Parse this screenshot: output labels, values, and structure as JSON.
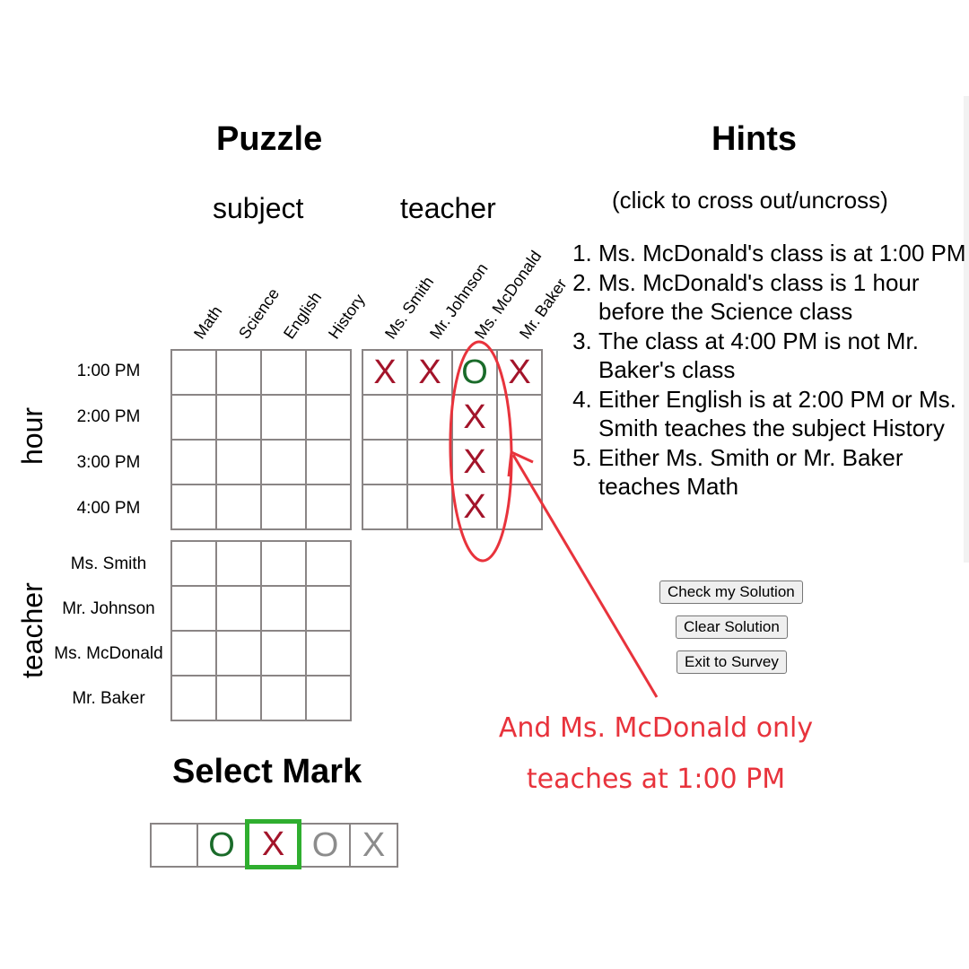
{
  "puzzle": {
    "title": "Puzzle",
    "groups": {
      "subject": "subject",
      "teacher": "teacher"
    },
    "subject_columns": [
      "Math",
      "Science",
      "English",
      "History"
    ],
    "teacher_columns": [
      "Ms. Smith",
      "Mr. Johnson",
      "Ms. McDonald",
      "Mr. Baker"
    ],
    "row_axis_hour": "hour",
    "row_axis_teacher": "teacher",
    "hour_rows": [
      "1:00 PM",
      "2:00 PM",
      "3:00 PM",
      "4:00 PM"
    ],
    "teacher_rows": [
      "Ms. Smith",
      "Mr. Johnson",
      "Ms. McDonald",
      "Mr. Baker"
    ],
    "hour_teacher_grid": [
      [
        "X",
        "X",
        "O",
        "X"
      ],
      [
        "",
        "",
        "X",
        ""
      ],
      [
        "",
        "",
        "X",
        ""
      ],
      [
        "",
        "",
        "X",
        ""
      ]
    ],
    "hour_subject_grid": [
      [
        "",
        "",
        "",
        ""
      ],
      [
        "",
        "",
        "",
        ""
      ],
      [
        "",
        "",
        "",
        ""
      ],
      [
        "",
        "",
        "",
        ""
      ]
    ],
    "teacher_subject_grid": [
      [
        "",
        "",
        "",
        ""
      ],
      [
        "",
        "",
        "",
        ""
      ],
      [
        "",
        "",
        "",
        ""
      ],
      [
        "",
        "",
        "",
        ""
      ]
    ]
  },
  "hints": {
    "title": "Hints",
    "subtitle": "(click to cross out/uncross)",
    "items": [
      "Ms. McDonald's class is at 1:00 PM",
      "Ms. McDonald's class is 1 hour before the Science class",
      "The class at 4:00 PM is not Mr. Baker's class",
      "Either English is at 2:00 PM or Ms. Smith teaches the subject History",
      "Either Ms. Smith or Mr. Baker teaches Math"
    ]
  },
  "buttons": {
    "check": "Check my Solution",
    "clear": "Clear Solution",
    "exit": "Exit to Survey"
  },
  "select_mark": {
    "title": "Select Mark",
    "options": [
      "",
      "O",
      "X",
      "O",
      "X"
    ],
    "selected_index": 2
  },
  "annotation": {
    "text_line1": "And Ms. McDonald only",
    "text_line2": "teaches at 1:00 PM"
  },
  "colors": {
    "x_mark": "#a3142a",
    "o_mark": "#1a6b2a",
    "faded_mark": "#8c8c8c",
    "selected_border": "#2fae2f",
    "annotation": "#e8333c",
    "grid_border": "#8a8585"
  }
}
